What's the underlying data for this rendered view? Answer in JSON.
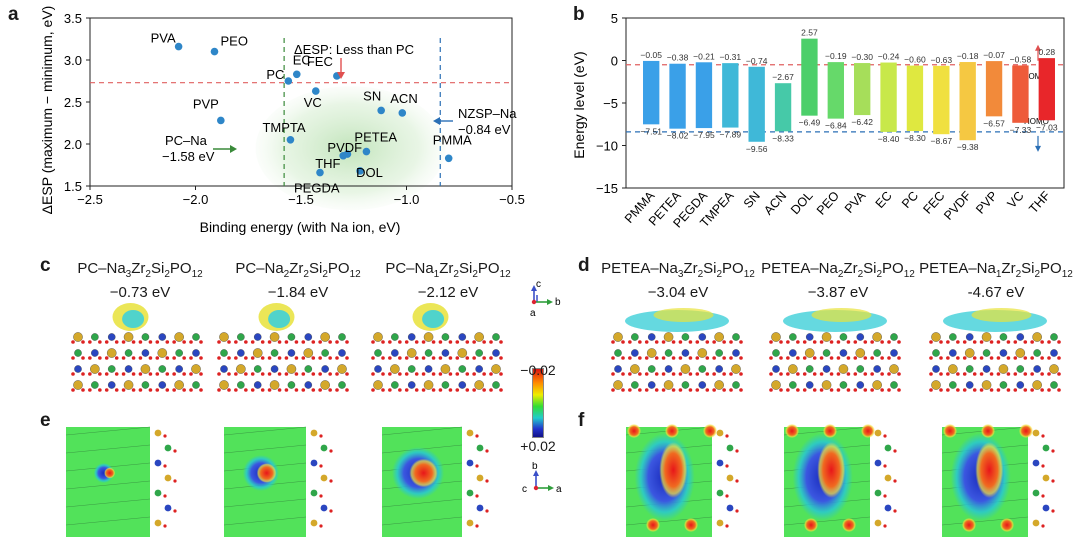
{
  "panel_labels": [
    "a",
    "b",
    "c",
    "d",
    "e",
    "f"
  ],
  "colors": {
    "point": "#2e86c8",
    "ref_hline": "#e06060",
    "green_dash": "#3a8a3a",
    "blue_dash": "#2a6fb5",
    "homo_line": "#2a6fb5",
    "lomo_line": "#e06060",
    "bars": [
      "#3aa0e8",
      "#3aa0e8",
      "#3aa0e8",
      "#3fb8d8",
      "#3fb8d8",
      "#46c9a8",
      "#4ccf6a",
      "#66d96a",
      "#a6de5a",
      "#c8e84a",
      "#dfe840",
      "#f0e040",
      "#f5c842",
      "#f28a3a",
      "#ee5b3a",
      "#e8262a"
    ]
  },
  "chart_data": [
    {
      "type": "scatter",
      "panel": "a",
      "xlabel": "Binding energy (with Na ion, eV)",
      "ylabel": "ΔESP (maximum − minimum, eV)",
      "xlim": [
        -2.5,
        -0.5
      ],
      "ylim": [
        1.5,
        3.5
      ],
      "xticks": [
        "−2.5",
        "−2.0",
        "−1.5",
        "−1.0",
        "−0.5"
      ],
      "yticks": [
        "1.5",
        "2.0",
        "2.5",
        "3.0",
        "3.5"
      ],
      "points": [
        {
          "label": "PVA",
          "x": -2.08,
          "y": 3.16
        },
        {
          "label": "PEO",
          "x": -1.91,
          "y": 3.1
        },
        {
          "label": "PC",
          "x": -1.56,
          "y": 2.75
        },
        {
          "label": "EC",
          "x": -1.52,
          "y": 2.83
        },
        {
          "label": "FEC",
          "x": -1.33,
          "y": 2.81
        },
        {
          "label": "VC",
          "x": -1.43,
          "y": 2.63
        },
        {
          "label": "PVP",
          "x": -1.88,
          "y": 2.28
        },
        {
          "label": "SN",
          "x": -1.12,
          "y": 2.4
        },
        {
          "label": "ACN",
          "x": -1.02,
          "y": 2.37
        },
        {
          "label": "TMPTA",
          "x": -1.55,
          "y": 2.05
        },
        {
          "label": "PVDF",
          "x": -1.28,
          "y": 1.88
        },
        {
          "label": "PETEA",
          "x": -1.19,
          "y": 1.91
        },
        {
          "label": "THF",
          "x": -1.3,
          "y": 1.86
        },
        {
          "label": "DOL",
          "x": -1.22,
          "y": 1.68
        },
        {
          "label": "PEGDA",
          "x": -1.41,
          "y": 1.66
        },
        {
          "label": "PMMA",
          "x": -0.8,
          "y": 1.83
        }
      ],
      "reference_y": 2.73,
      "vlines": [
        -1.58,
        -0.84
      ],
      "annotations": {
        "top": "ΔESP: Less than PC",
        "pc_na_line1": "PC–Na",
        "pc_na_line2": "−1.58 eV",
        "nzsp_na_line1": "NZSP–Na",
        "nzsp_na_line2": "−0.84 eV"
      }
    },
    {
      "type": "bar",
      "panel": "b",
      "ylabel": "Energy level (eV)",
      "ylim": [
        -15,
        5
      ],
      "yticks": [
        "5",
        "0",
        "−5",
        "−10",
        "−15"
      ],
      "categories": [
        "PMMA",
        "PETEA",
        "PEGDA",
        "TMPEA",
        "SN",
        "ACN",
        "DOL",
        "PEO",
        "PVA",
        "EC",
        "PC",
        "FEC",
        "PVDF",
        "PVP",
        "VC",
        "THF"
      ],
      "lomo": [
        -0.05,
        -0.38,
        -0.21,
        -0.31,
        -0.74,
        -2.67,
        2.57,
        -0.19,
        -0.3,
        -0.24,
        -0.6,
        -0.63,
        -0.18,
        -0.07,
        -0.58,
        0.28
      ],
      "homo": [
        -7.51,
        -8.02,
        -7.95,
        -7.89,
        -9.56,
        -8.33,
        -6.49,
        -6.84,
        -6.42,
        -8.4,
        -8.3,
        -8.67,
        -9.38,
        -6.57,
        -7.33,
        -7.03
      ],
      "lomo_labels": [
        "−0.05",
        "−0.38",
        "−0.21",
        "−0.31",
        "−0.74",
        "−2.67",
        "2.57",
        "−0.19",
        "−0.30",
        "−0.24",
        "−0.60",
        "−0.63",
        "−0.18",
        "−0.07",
        "−0.58",
        "0.28"
      ],
      "homo_labels": [
        "−7.51",
        "−8.02",
        "−7.95",
        "−7.89",
        "−9.56",
        "−8.33",
        "−6.49",
        "−6.84",
        "−6.42",
        "−8.40",
        "−8.30",
        "−8.67",
        "−9.38",
        "−6.57",
        "−7.33",
        "−7.03"
      ],
      "ref_lomo": -0.5,
      "ref_homo": -8.4,
      "lomo_tag": "LOMO",
      "homo_tag": "HOMO"
    }
  ],
  "panel_c": {
    "items": [
      {
        "prefix": "PC–Na",
        "n": "3",
        "mid": "Zr",
        "n2": "2",
        "si": "Si",
        "n3": "2",
        "po": "PO",
        "n4": "12",
        "energy": "−0.73 eV"
      },
      {
        "prefix": "PC–Na",
        "n": "2",
        "mid": "Zr",
        "n2": "2",
        "si": "Si",
        "n3": "2",
        "po": "PO",
        "n4": "12",
        "energy": "−1.84 eV"
      },
      {
        "prefix": "PC–Na",
        "n": "1",
        "mid": "Zr",
        "n2": "2",
        "si": "Si",
        "n3": "2",
        "po": "PO",
        "n4": "12",
        "energy": "−2.12 eV"
      }
    ],
    "axes": {
      "c": "c",
      "b": "b",
      "a": "a"
    }
  },
  "panel_d": {
    "items": [
      {
        "prefix": "PETEA–Na",
        "n": "3",
        "mid": "Zr",
        "n2": "2",
        "si": "Si",
        "n3": "2",
        "po": "PO",
        "n4": "12",
        "energy": "−3.04 eV"
      },
      {
        "prefix": "PETEA–Na",
        "n": "2",
        "mid": "Zr",
        "n2": "2",
        "si": "Si",
        "n3": "2",
        "po": "PO",
        "n4": "12",
        "energy": "−3.87 eV"
      },
      {
        "prefix": "PETEA–Na",
        "n": "1",
        "mid": "Zr",
        "n2": "2",
        "si": "Si",
        "n3": "2",
        "po": "PO",
        "n4": "12",
        "energy": "-4.67 eV"
      }
    ]
  },
  "colorbar": {
    "top": "−0.02",
    "bottom": "+0.02"
  },
  "panel_e_axes": {
    "b": "b",
    "c": "c",
    "a": "a"
  }
}
